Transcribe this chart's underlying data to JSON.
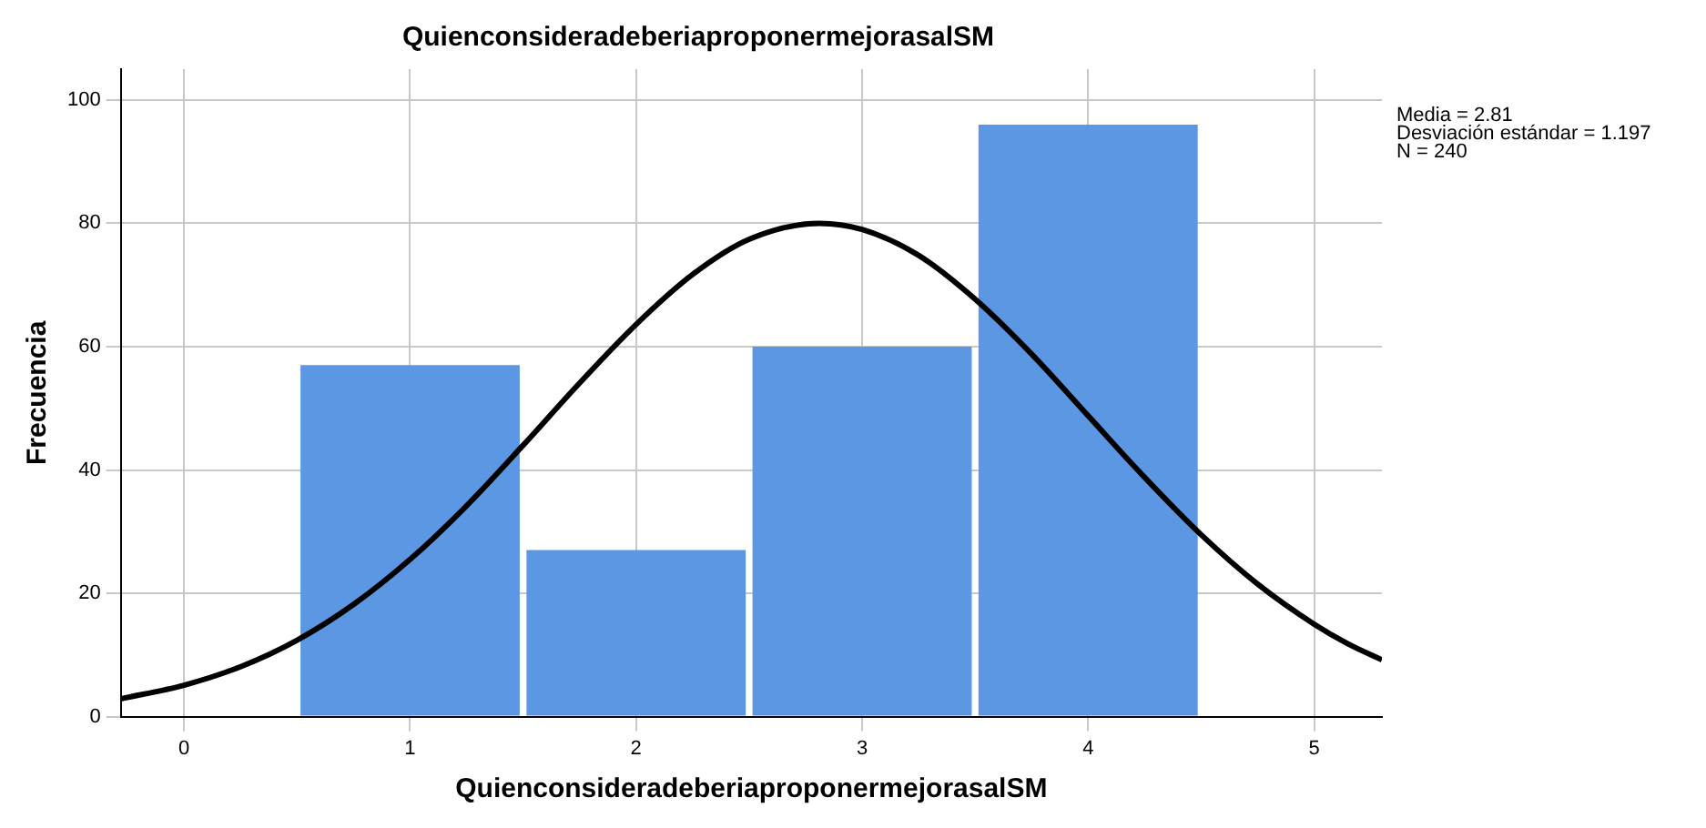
{
  "chart_data": {
    "type": "histogram",
    "title": "QuienconsideradeberiaproponermejorasalSM",
    "xlabel": "QuienconsideradeberiaproponermejorasalSM",
    "ylabel": "Frecuencia",
    "bins": [
      0.5,
      1.5,
      2.5,
      3.5,
      4.5
    ],
    "values": [
      57,
      27,
      60,
      96
    ],
    "color": "#5b97e3",
    "series": [
      {
        "type": "line",
        "color": "#000000",
        "x": [
          -0.28,
          0,
          0.25,
          0.5,
          0.75,
          1,
          1.25,
          1.5,
          1.75,
          2,
          2.25,
          2.5,
          2.81,
          3,
          3.25,
          3.5,
          3.75,
          4,
          4.25,
          4.5,
          4.75,
          5,
          5.15,
          5.3
        ],
        "values": [
          2.9,
          5.1,
          8.1,
          12.4,
          18.2,
          25.5,
          34.2,
          44,
          54.1,
          63.6,
          71.7,
          77.4,
          80,
          79,
          74.8,
          67.7,
          58.8,
          48.8,
          38.8,
          29.5,
          21.5,
          15,
          11.8,
          9.2
        ]
      }
    ],
    "xlim": [
      -0.28,
      5.3
    ],
    "xticks": [
      0,
      1,
      2,
      3,
      4,
      5
    ],
    "ylim": [
      0,
      105
    ],
    "yticks": [
      0,
      20,
      40,
      60,
      80,
      100
    ],
    "grid": true,
    "legend": false,
    "marker": "none",
    "annotations": [
      "Media = 2.81",
      "Desviación estándar = 1.197",
      "N = 240"
    ]
  }
}
